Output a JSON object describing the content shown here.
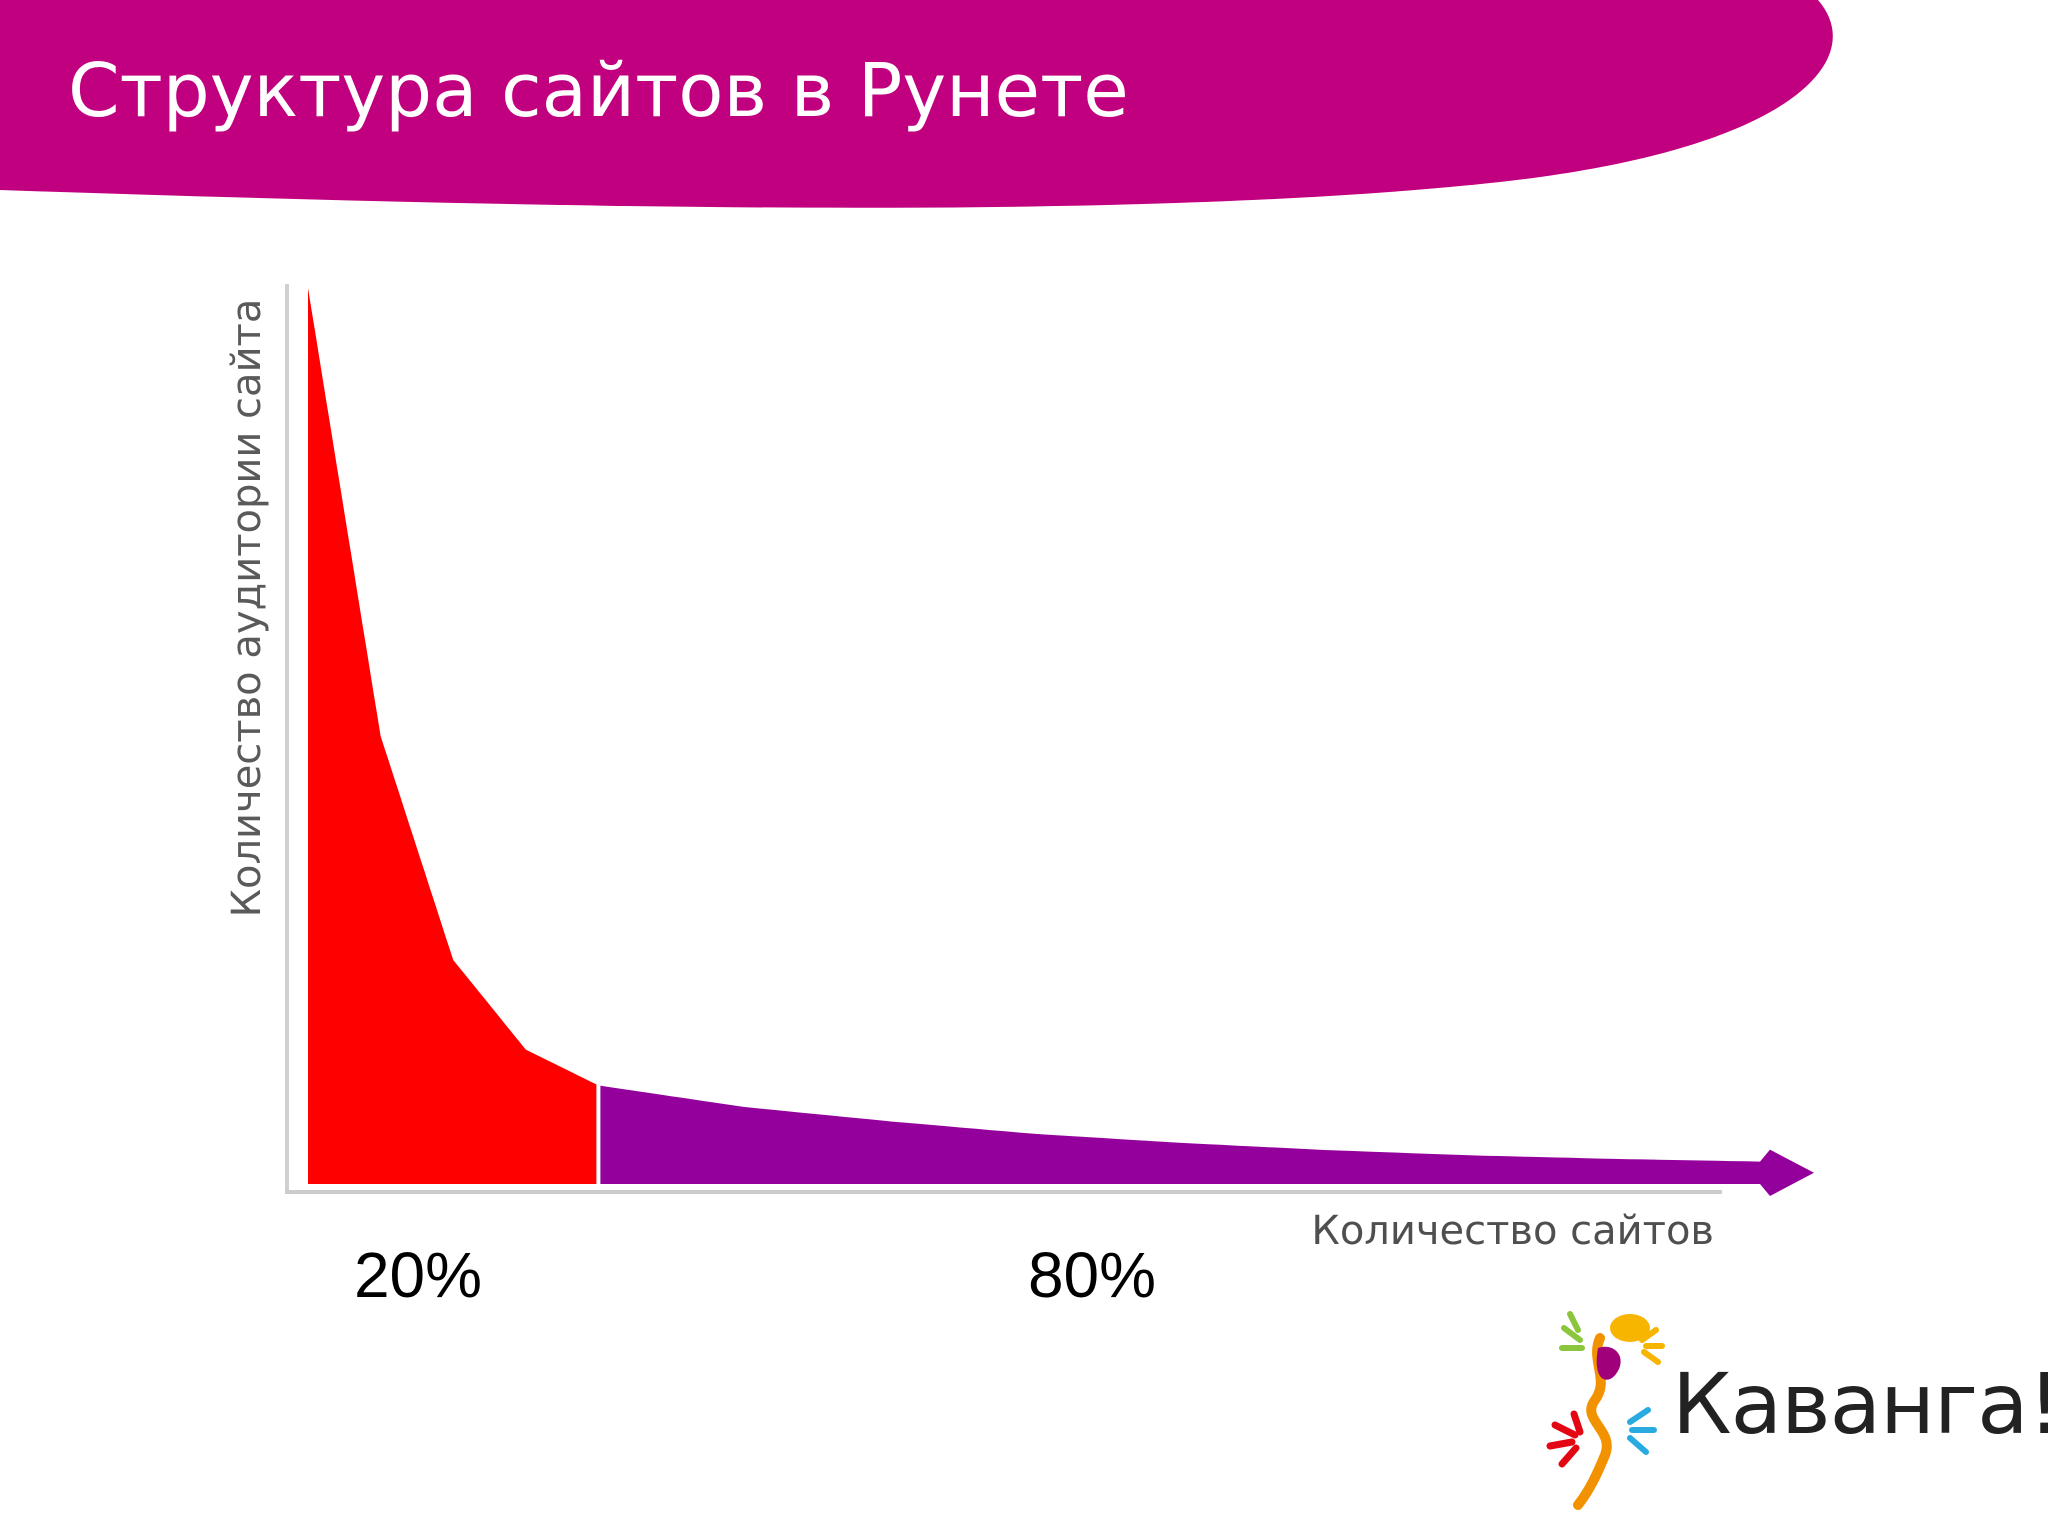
{
  "slide": {
    "title": "Структура сайтов в Рунете",
    "header_color": "#c1007f"
  },
  "chart_data": {
    "type": "area",
    "title": "",
    "xlabel": "Количество сайтов",
    "ylabel": "Количество аудитории сайта",
    "grid": false,
    "legend": "none",
    "segments": [
      {
        "label": "20%",
        "share": 0.2,
        "color": "#ff0000"
      },
      {
        "label": "80%",
        "share": 0.8,
        "color": "#94009c"
      }
    ],
    "series": [
      {
        "x": [
          0,
          0.05,
          0.1,
          0.15,
          0.2,
          0.3,
          0.4,
          0.5,
          0.6,
          0.7,
          0.8,
          0.9,
          1.0
        ],
        "y": [
          100,
          50,
          25,
          15,
          11,
          8.6,
          7,
          5.6,
          4.6,
          3.8,
          3.2,
          2.8,
          2.5
        ]
      }
    ],
    "x_axis_arrow": true
  },
  "logo": {
    "text": "Каванга!",
    "colors": [
      "#8cc63f",
      "#f7b500",
      "#a0007a",
      "#e30613",
      "#29abe2",
      "#f39200"
    ]
  }
}
